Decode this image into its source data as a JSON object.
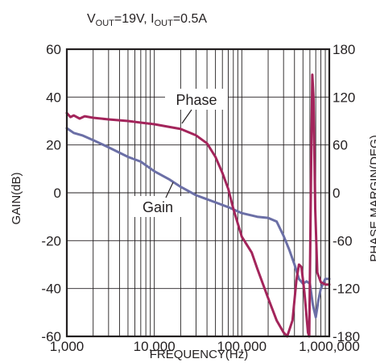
{
  "chart_data": {
    "type": "line",
    "conditions": {
      "vout_prefix": "V",
      "vout_sub": "OUT",
      "vout_val": "=19V, ",
      "iout_prefix": "I",
      "iout_sub": "OUT",
      "iout_val": "=0.5A"
    },
    "xlabel": "FREQUENCY(Hz)",
    "ylabel": "GAIN(dB)",
    "y2label": "PHASE MARGIN(DEG)",
    "x_scale": "log",
    "xlim": [
      1000,
      1000000
    ],
    "ylim": [
      -60,
      60
    ],
    "y2lim": [
      -180,
      180
    ],
    "grid": true,
    "x_ticks": [
      "1,000",
      "10,000",
      "100,000",
      "1,000,000"
    ],
    "y_ticks": [
      "60",
      "40",
      "20",
      "0",
      "-20",
      "-40",
      "-60"
    ],
    "y2_ticks": [
      "180",
      "120",
      "60",
      "0",
      "-60",
      "-120",
      "-180"
    ],
    "series": [
      {
        "name": "Gain",
        "color": "#6b6fa6",
        "axis": "left",
        "points": [
          [
            1000,
            27
          ],
          [
            1200,
            25
          ],
          [
            1500,
            24
          ],
          [
            2000,
            22
          ],
          [
            3000,
            19
          ],
          [
            5000,
            15
          ],
          [
            7000,
            13
          ],
          [
            10000,
            9
          ],
          [
            15000,
            5.5
          ],
          [
            20000,
            2.5
          ],
          [
            30000,
            -1
          ],
          [
            50000,
            -4
          ],
          [
            70000,
            -6
          ],
          [
            100000,
            -8.5
          ],
          [
            150000,
            -10
          ],
          [
            200000,
            -10.5
          ],
          [
            250000,
            -12
          ],
          [
            300000,
            -18
          ],
          [
            350000,
            -24
          ],
          [
            400000,
            -30
          ],
          [
            450000,
            -36
          ],
          [
            500000,
            -38
          ],
          [
            550000,
            -37
          ],
          [
            600000,
            -38
          ],
          [
            650000,
            -47
          ],
          [
            700000,
            -52
          ],
          [
            750000,
            -45
          ],
          [
            800000,
            -40
          ],
          [
            900000,
            -36
          ],
          [
            1000000,
            -36
          ]
        ]
      },
      {
        "name": "Phase",
        "color": "#a3255b",
        "axis": "right",
        "points": [
          [
            1000,
            100
          ],
          [
            1100,
            95
          ],
          [
            1200,
            97
          ],
          [
            1400,
            93
          ],
          [
            1600,
            96
          ],
          [
            2000,
            94
          ],
          [
            3000,
            92
          ],
          [
            5000,
            90
          ],
          [
            7000,
            88
          ],
          [
            10000,
            86
          ],
          [
            20000,
            80
          ],
          [
            30000,
            72
          ],
          [
            40000,
            62
          ],
          [
            50000,
            45
          ],
          [
            60000,
            25
          ],
          [
            70000,
            5
          ],
          [
            80000,
            -20
          ],
          [
            100000,
            -55
          ],
          [
            130000,
            -75
          ],
          [
            150000,
            -95
          ],
          [
            200000,
            -132
          ],
          [
            250000,
            -160
          ],
          [
            300000,
            -175
          ],
          [
            330000,
            -180
          ],
          [
            380000,
            -160
          ],
          [
            420000,
            -110
          ],
          [
            450000,
            -90
          ],
          [
            480000,
            -93
          ],
          [
            520000,
            -125
          ],
          [
            570000,
            -175
          ],
          [
            590000,
            -180
          ],
          [
            620000,
            30
          ],
          [
            640000,
            148
          ],
          [
            660000,
            120
          ],
          [
            690000,
            -20
          ],
          [
            730000,
            -100
          ],
          [
            800000,
            -112
          ],
          [
            900000,
            -115
          ],
          [
            1000000,
            -115
          ]
        ]
      }
    ]
  }
}
